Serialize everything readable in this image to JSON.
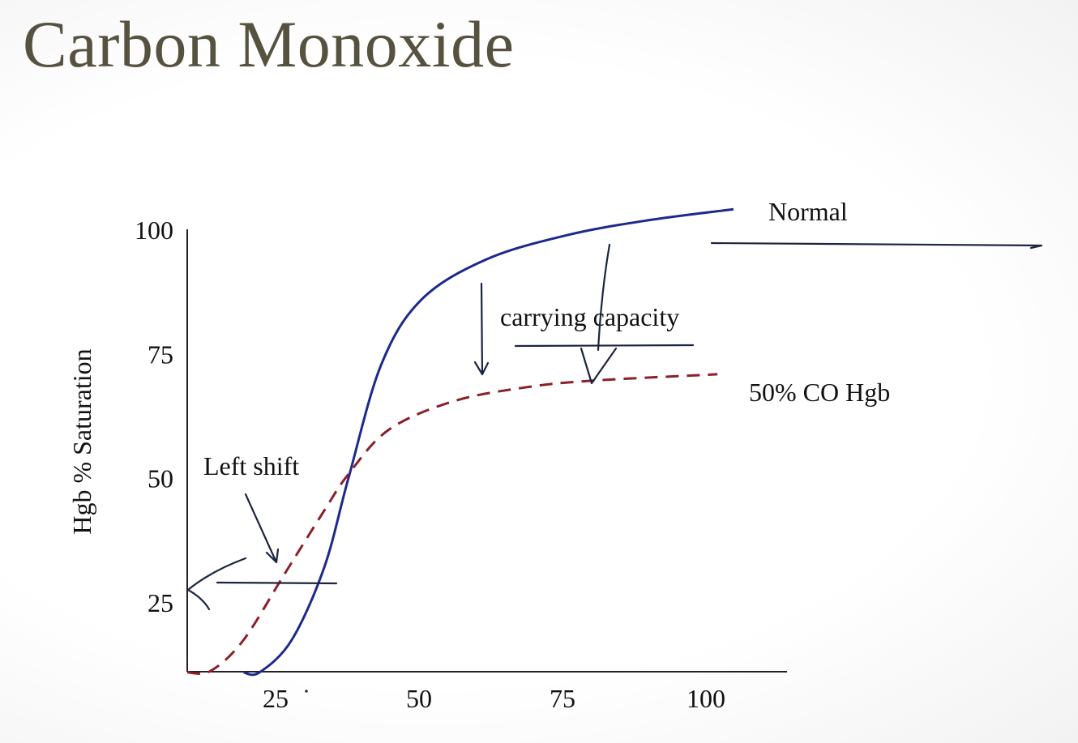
{
  "title": "Carbon Monoxide",
  "chart_data": {
    "type": "line",
    "title": "",
    "xlabel": "",
    "ylabel": "Hgb % Saturation",
    "x_ticks": [
      25,
      50,
      75,
      100
    ],
    "y_ticks": [
      25,
      50,
      75,
      100
    ],
    "grid": false,
    "series": [
      {
        "name": "Normal",
        "color": "#1c2a8c",
        "style": "solid",
        "x": [
          19.4,
          22.2,
          27.8,
          33.5,
          37.7,
          43.4,
          50.4,
          61.7,
          75.8,
          90,
          104.8
        ],
        "y": [
          11,
          11,
          17.5,
          32.2,
          50.1,
          72.9,
          86,
          94.1,
          99,
          102,
          104.2
        ]
      },
      {
        "name": "50% CO Hgb",
        "color": "#8b1f2a",
        "style": "dashed",
        "x": [
          9.6,
          13.7,
          19.4,
          26.4,
          33.5,
          37.7,
          44.8,
          56.1,
          68.8,
          80.1,
          102
        ],
        "y": [
          11,
          11.3,
          17.5,
          30.5,
          43.6,
          50.9,
          59.9,
          65.6,
          68.4,
          69.7,
          71
        ]
      }
    ],
    "annotations": [
      "carrying capacity",
      "Left shift"
    ]
  }
}
